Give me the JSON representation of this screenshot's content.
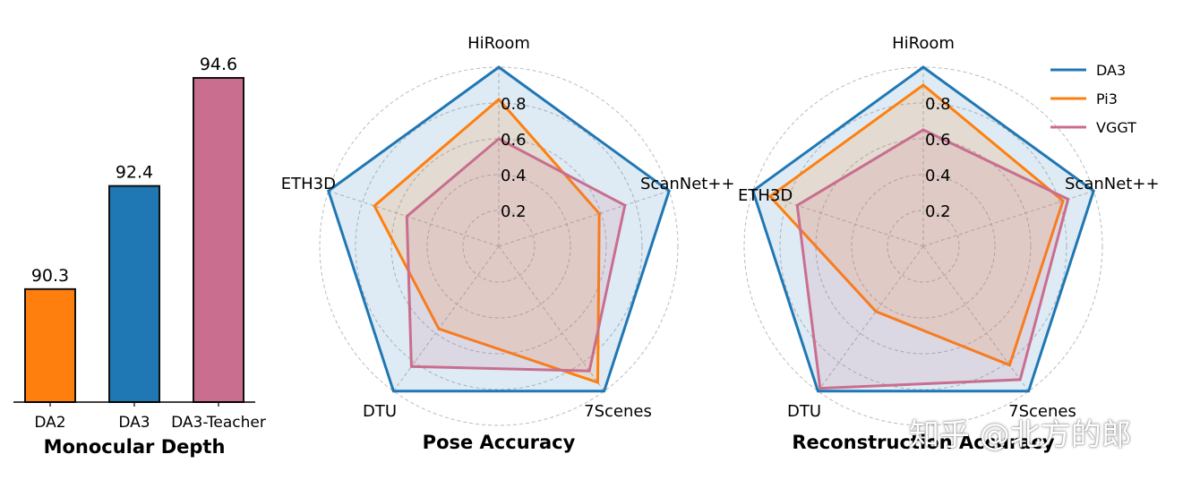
{
  "colors": {
    "DA3": "#1f77b4",
    "Pi3": "#ff7f0e",
    "VGGT": "#c96e8e",
    "grid": "#bbbbbb"
  },
  "chart_data": [
    {
      "type": "bar",
      "title": "Monocular Depth",
      "categories": [
        "DA2",
        "DA3",
        "DA3-Teacher"
      ],
      "values": [
        90.3,
        92.4,
        94.6
      ],
      "value_labels": [
        "90.3",
        "92.4",
        "94.6"
      ],
      "bar_colors": [
        "#ff7f0e",
        "#1f77b4",
        "#c96e8e"
      ],
      "ylim": [
        88.0,
        95.0
      ],
      "xlabel": "",
      "ylabel": ""
    },
    {
      "type": "radar",
      "title": "Pose Accuracy",
      "axes": [
        "HiRoom",
        "ScanNet++",
        "7Scenes",
        "DTU",
        "ETH3D"
      ],
      "radial_ticks": [
        "0.2",
        "0.4",
        "0.6",
        "0.8"
      ],
      "rmax": 1.0,
      "series": [
        {
          "name": "DA3",
          "values": [
            1.0,
            1.0,
            1.0,
            1.0,
            1.0
          ]
        },
        {
          "name": "Pi3",
          "values": [
            0.82,
            0.59,
            0.94,
            0.57,
            0.73
          ]
        },
        {
          "name": "VGGT",
          "values": [
            0.6,
            0.74,
            0.86,
            0.83,
            0.54
          ]
        }
      ]
    },
    {
      "type": "radar",
      "title": "Reconstruction Accuracy",
      "axes": [
        "HiRoom",
        "ScanNet++",
        "7Scenes",
        "DTU",
        "ETH3D"
      ],
      "radial_ticks": [
        "0.2",
        "0.4",
        "0.6",
        "0.8"
      ],
      "rmax": 1.0,
      "series": [
        {
          "name": "DA3",
          "values": [
            1.0,
            1.0,
            1.0,
            1.0,
            1.0
          ]
        },
        {
          "name": "Pi3",
          "values": [
            0.9,
            0.82,
            0.82,
            0.45,
            0.9
          ]
        },
        {
          "name": "VGGT",
          "values": [
            0.65,
            0.85,
            0.92,
            0.98,
            0.74
          ]
        }
      ],
      "legend": {
        "position": "upper-right",
        "entries": [
          "DA3",
          "Pi3",
          "VGGT"
        ]
      }
    }
  ],
  "watermark": "知乎 @北方的郎"
}
